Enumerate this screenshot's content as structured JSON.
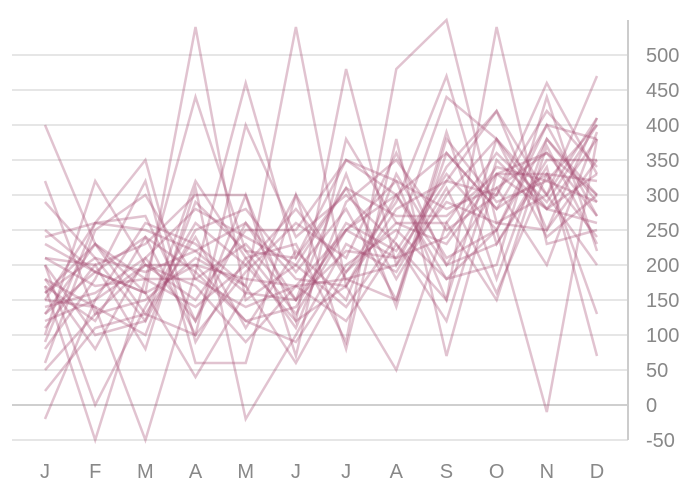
{
  "chart_data": {
    "type": "line",
    "title": "",
    "xlabel": "",
    "ylabel": "",
    "categories": [
      "J",
      "F",
      "M",
      "A",
      "M",
      "J",
      "J",
      "A",
      "S",
      "O",
      "N",
      "D"
    ],
    "ylim": [
      -50,
      550
    ],
    "y_ticks": [
      -50,
      0,
      50,
      100,
      150,
      200,
      250,
      300,
      350,
      400,
      450,
      500
    ],
    "y_axis_side": "right",
    "grid": true,
    "legend": "none",
    "colors": {
      "line": "#a4496f",
      "grid": "#dddddd",
      "axis": "#cccccc",
      "tick_text": "#888888"
    },
    "series": [
      {
        "values": [
          400,
          230,
          160,
          40,
          160,
          150,
          250,
          210,
          320,
          420,
          250,
          410
        ]
      },
      {
        "values": [
          320,
          130,
          200,
          170,
          90,
          170,
          120,
          230,
          120,
          350,
          280,
          260
        ]
      },
      {
        "values": [
          290,
          210,
          120,
          320,
          210,
          110,
          290,
          350,
          250,
          300,
          460,
          330
        ]
      },
      {
        "values": [
          240,
          260,
          250,
          220,
          260,
          180,
          170,
          300,
          200,
          230,
          340,
          70
        ]
      },
      {
        "values": [
          200,
          0,
          140,
          260,
          200,
          280,
          190,
          260,
          230,
          330,
          280,
          380
        ]
      },
      {
        "values": [
          130,
          190,
          160,
          540,
          150,
          200,
          310,
          180,
          300,
          380,
          300,
          410
        ]
      },
      {
        "values": [
          100,
          320,
          200,
          200,
          120,
          90,
          200,
          250,
          180,
          250,
          380,
          300
        ]
      },
      {
        "values": [
          170,
          -50,
          180,
          440,
          220,
          130,
          250,
          320,
          280,
          310,
          360,
          270
        ]
      },
      {
        "values": [
          60,
          250,
          300,
          180,
          140,
          170,
          180,
          150,
          360,
          280,
          400,
          380
        ]
      },
      {
        "values": [
          20,
          110,
          130,
          100,
          400,
          240,
          300,
          230,
          150,
          540,
          230,
          250
        ]
      },
      {
        "values": [
          -20,
          150,
          260,
          230,
          170,
          540,
          170,
          280,
          320,
          300,
          420,
          340
        ]
      },
      {
        "values": [
          150,
          260,
          350,
          90,
          210,
          230,
          90,
          480,
          550,
          260,
          300,
          470
        ]
      },
      {
        "values": [
          180,
          140,
          -50,
          190,
          460,
          210,
          350,
          300,
          180,
          200,
          440,
          220
        ]
      },
      {
        "values": [
          210,
          200,
          230,
          300,
          300,
          120,
          480,
          200,
          340,
          420,
          300,
          200
        ]
      },
      {
        "values": [
          160,
          230,
          180,
          180,
          230,
          150,
          330,
          140,
          380,
          290,
          320,
          290
        ]
      },
      {
        "values": [
          80,
          180,
          320,
          60,
          60,
          300,
          80,
          380,
          70,
          330,
          330,
          130
        ]
      },
      {
        "values": [
          140,
          160,
          210,
          120,
          300,
          70,
          380,
          260,
          260,
          360,
          290,
          400
        ]
      },
      {
        "values": [
          110,
          200,
          80,
          310,
          -20,
          100,
          230,
          190,
          310,
          160,
          330,
          240
        ]
      },
      {
        "values": [
          180,
          80,
          210,
          280,
          240,
          200,
          140,
          240,
          440,
          380,
          240,
          300
        ]
      },
      {
        "values": [
          230,
          190,
          240,
          100,
          190,
          260,
          210,
          360,
          200,
          310,
          200,
          390
        ]
      },
      {
        "values": [
          50,
          130,
          150,
          210,
          170,
          60,
          190,
          290,
          470,
          230,
          350,
          350
        ]
      },
      {
        "values": [
          200,
          100,
          120,
          250,
          280,
          190,
          280,
          150,
          390,
          180,
          380,
          290
        ]
      },
      {
        "values": [
          120,
          150,
          200,
          150,
          250,
          250,
          350,
          320,
          150,
          380,
          280,
          330
        ]
      },
      {
        "values": [
          170,
          120,
          240,
          190,
          120,
          140,
          260,
          220,
          330,
          250,
          400,
          270
        ]
      },
      {
        "values": [
          210,
          170,
          180,
          140,
          200,
          120,
          170,
          50,
          260,
          150,
          370,
          230
        ]
      },
      {
        "values": [
          130,
          230,
          130,
          240,
          110,
          220,
          150,
          330,
          210,
          250,
          -10,
          380
        ]
      },
      {
        "values": [
          250,
          190,
          160,
          200,
          180,
          170,
          250,
          300,
          360,
          280,
          330,
          320
        ]
      },
      {
        "values": [
          150,
          140,
          100,
          290,
          220,
          210,
          310,
          270,
          270,
          330,
          360,
          300
        ]
      },
      {
        "values": [
          90,
          260,
          270,
          120,
          260,
          150,
          220,
          210,
          240,
          340,
          320,
          400
        ]
      },
      {
        "values": [
          160,
          210,
          190,
          220,
          160,
          300,
          180,
          200,
          290,
          260,
          250,
          350
        ]
      }
    ]
  }
}
